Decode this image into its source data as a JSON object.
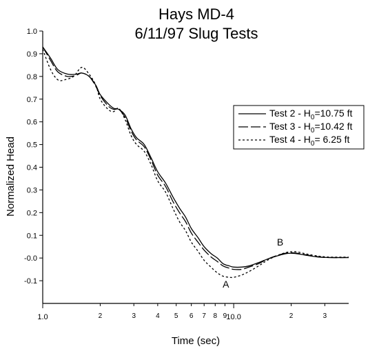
{
  "chart_data": {
    "type": "line",
    "title": [
      "Hays MD-4",
      "6/11/97 Slug Tests"
    ],
    "xlabel": "Time (sec)",
    "ylabel": "Normalized Head",
    "x_scale": "log",
    "xlim": [
      1.0,
      40
    ],
    "ylim": [
      -0.2,
      1.0
    ],
    "x_major_ticks": [
      {
        "value": 1,
        "label": "1.0"
      },
      {
        "value": 10,
        "label": "10.0"
      }
    ],
    "x_minor_ticks": [
      {
        "value": 2,
        "label": "2"
      },
      {
        "value": 3,
        "label": "3"
      },
      {
        "value": 4,
        "label": "4"
      },
      {
        "value": 5,
        "label": "5"
      },
      {
        "value": 6,
        "label": "6"
      },
      {
        "value": 7,
        "label": "7"
      },
      {
        "value": 8,
        "label": "8"
      },
      {
        "value": 9,
        "label": "9"
      },
      {
        "value": 20,
        "label": "2"
      },
      {
        "value": 30,
        "label": "3"
      }
    ],
    "y_ticks": [
      {
        "value": 1.0,
        "label": "1.0"
      },
      {
        "value": 0.9,
        "label": "0.9"
      },
      {
        "value": 0.8,
        "label": "0.8"
      },
      {
        "value": 0.7,
        "label": "0.7"
      },
      {
        "value": 0.6,
        "label": "0.6"
      },
      {
        "value": 0.5,
        "label": "0.5"
      },
      {
        "value": 0.4,
        "label": "0.4"
      },
      {
        "value": 0.3,
        "label": "0.3"
      },
      {
        "value": 0.2,
        "label": "0.2"
      },
      {
        "value": 0.1,
        "label": "0.1"
      },
      {
        "value": 0.0,
        "label": "-0.0"
      },
      {
        "value": -0.1,
        "label": "-0.1"
      }
    ],
    "grid": false,
    "legend_position": "top-right",
    "series": [
      {
        "name": "Test 2",
        "legend": {
          "prefix": "Test 2 - H",
          "sub": "0",
          "suffix": "=10.75 ft"
        },
        "style": "solid",
        "points": [
          [
            1.0,
            0.93
          ],
          [
            1.1,
            0.88
          ],
          [
            1.2,
            0.83
          ],
          [
            1.35,
            0.81
          ],
          [
            1.5,
            0.81
          ],
          [
            1.6,
            0.815
          ],
          [
            1.75,
            0.8
          ],
          [
            1.9,
            0.76
          ],
          [
            2.0,
            0.72
          ],
          [
            2.2,
            0.68
          ],
          [
            2.35,
            0.66
          ],
          [
            2.5,
            0.655
          ],
          [
            2.7,
            0.63
          ],
          [
            2.9,
            0.57
          ],
          [
            3.1,
            0.53
          ],
          [
            3.4,
            0.5
          ],
          [
            3.7,
            0.44
          ],
          [
            4.0,
            0.38
          ],
          [
            4.4,
            0.33
          ],
          [
            4.8,
            0.27
          ],
          [
            5.2,
            0.22
          ],
          [
            5.6,
            0.18
          ],
          [
            6.0,
            0.13
          ],
          [
            6.5,
            0.09
          ],
          [
            7.0,
            0.05
          ],
          [
            7.6,
            0.02
          ],
          [
            8.2,
            0.0
          ],
          [
            8.8,
            -0.025
          ],
          [
            9.5,
            -0.035
          ],
          [
            10.0,
            -0.04
          ],
          [
            11.0,
            -0.04
          ],
          [
            12.0,
            -0.035
          ],
          [
            13.5,
            -0.02
          ],
          [
            15.0,
            -0.005
          ],
          [
            17.0,
            0.01
          ],
          [
            19.0,
            0.02
          ],
          [
            21.0,
            0.02
          ],
          [
            24.0,
            0.012
          ],
          [
            28.0,
            0.004
          ],
          [
            32.0,
            0.002
          ],
          [
            40.0,
            0.002
          ]
        ]
      },
      {
        "name": "Test 3",
        "legend": {
          "prefix": "Test 3 - H",
          "sub": "0",
          "suffix": "=10.42 ft"
        },
        "style": "long-dash",
        "points": [
          [
            1.0,
            0.93
          ],
          [
            1.1,
            0.87
          ],
          [
            1.2,
            0.82
          ],
          [
            1.35,
            0.8
          ],
          [
            1.5,
            0.805
          ],
          [
            1.6,
            0.815
          ],
          [
            1.75,
            0.8
          ],
          [
            1.9,
            0.755
          ],
          [
            2.0,
            0.715
          ],
          [
            2.2,
            0.67
          ],
          [
            2.35,
            0.655
          ],
          [
            2.5,
            0.655
          ],
          [
            2.7,
            0.62
          ],
          [
            2.9,
            0.56
          ],
          [
            3.1,
            0.52
          ],
          [
            3.4,
            0.49
          ],
          [
            3.7,
            0.43
          ],
          [
            4.0,
            0.365
          ],
          [
            4.4,
            0.315
          ],
          [
            4.8,
            0.25
          ],
          [
            5.2,
            0.2
          ],
          [
            5.6,
            0.16
          ],
          [
            6.0,
            0.11
          ],
          [
            6.5,
            0.07
          ],
          [
            7.0,
            0.035
          ],
          [
            7.6,
            0.005
          ],
          [
            8.2,
            -0.015
          ],
          [
            8.8,
            -0.035
          ],
          [
            9.5,
            -0.045
          ],
          [
            10.0,
            -0.05
          ],
          [
            11.0,
            -0.05
          ],
          [
            12.0,
            -0.04
          ],
          [
            13.5,
            -0.025
          ],
          [
            15.0,
            -0.005
          ],
          [
            17.0,
            0.012
          ],
          [
            19.0,
            0.022
          ],
          [
            21.0,
            0.022
          ],
          [
            24.0,
            0.014
          ],
          [
            28.0,
            0.005
          ],
          [
            32.0,
            0.002
          ],
          [
            40.0,
            0.002
          ]
        ]
      },
      {
        "name": "Test 4",
        "legend": {
          "prefix": "Test 4 - H",
          "sub": "0",
          "suffix": "= 6.25 ft"
        },
        "style": "short-dash",
        "points": [
          [
            1.0,
            0.92
          ],
          [
            1.1,
            0.83
          ],
          [
            1.2,
            0.785
          ],
          [
            1.3,
            0.785
          ],
          [
            1.45,
            0.8
          ],
          [
            1.6,
            0.84
          ],
          [
            1.75,
            0.81
          ],
          [
            1.9,
            0.76
          ],
          [
            2.0,
            0.7
          ],
          [
            2.2,
            0.655
          ],
          [
            2.35,
            0.645
          ],
          [
            2.5,
            0.66
          ],
          [
            2.7,
            0.61
          ],
          [
            2.9,
            0.54
          ],
          [
            3.1,
            0.5
          ],
          [
            3.4,
            0.47
          ],
          [
            3.7,
            0.41
          ],
          [
            4.0,
            0.34
          ],
          [
            4.4,
            0.29
          ],
          [
            4.8,
            0.22
          ],
          [
            5.2,
            0.16
          ],
          [
            5.6,
            0.12
          ],
          [
            6.0,
            0.07
          ],
          [
            6.5,
            0.03
          ],
          [
            7.0,
            -0.01
          ],
          [
            7.6,
            -0.04
          ],
          [
            8.2,
            -0.065
          ],
          [
            8.8,
            -0.08
          ],
          [
            9.5,
            -0.085
          ],
          [
            10.0,
            -0.085
          ],
          [
            11.0,
            -0.075
          ],
          [
            12.0,
            -0.06
          ],
          [
            13.5,
            -0.035
          ],
          [
            15.0,
            -0.01
          ],
          [
            17.0,
            0.012
          ],
          [
            19.0,
            0.025
          ],
          [
            21.0,
            0.028
          ],
          [
            24.0,
            0.018
          ],
          [
            28.0,
            0.008
          ],
          [
            32.0,
            0.004
          ],
          [
            40.0,
            0.004
          ]
        ]
      }
    ],
    "annotations": [
      {
        "text": "A",
        "x": 9.1,
        "y": -0.13
      },
      {
        "text": "B",
        "x": 17.5,
        "y": 0.055
      }
    ]
  }
}
